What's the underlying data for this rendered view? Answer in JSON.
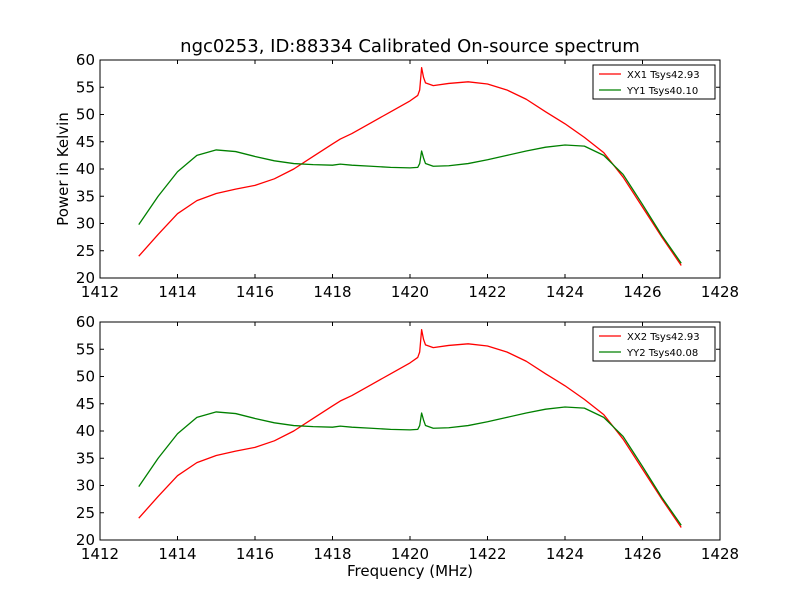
{
  "figure": {
    "title": "ngc0253, ID:88334 Calibrated On-source spectrum"
  },
  "chart_data": [
    {
      "type": "line",
      "title": "ngc0253, ID:88334 Calibrated On-source spectrum",
      "xlabel": "",
      "ylabel": "Power in Kelvin",
      "xlim": [
        1412,
        1428
      ],
      "ylim": [
        20,
        60
      ],
      "xticks": [
        1412,
        1414,
        1416,
        1418,
        1420,
        1422,
        1424,
        1426,
        1428
      ],
      "yticks": [
        20,
        25,
        30,
        35,
        40,
        45,
        50,
        55,
        60
      ],
      "grid": false,
      "legend_position": "top-right",
      "series": [
        {
          "name": "XX1 Tsys42.93",
          "color": "#ff0000",
          "points": [
            [
              1413.0,
              24.0
            ],
            [
              1413.5,
              28.0
            ],
            [
              1414.0,
              31.8
            ],
            [
              1414.5,
              34.2
            ],
            [
              1415.0,
              35.5
            ],
            [
              1415.5,
              36.3
            ],
            [
              1416.0,
              37.0
            ],
            [
              1416.5,
              38.2
            ],
            [
              1417.0,
              40.0
            ],
            [
              1417.5,
              42.3
            ],
            [
              1418.0,
              44.6
            ],
            [
              1418.2,
              45.5
            ],
            [
              1418.5,
              46.5
            ],
            [
              1419.0,
              48.5
            ],
            [
              1419.5,
              50.5
            ],
            [
              1420.0,
              52.5
            ],
            [
              1420.2,
              53.5
            ],
            [
              1420.25,
              54.5
            ],
            [
              1420.3,
              58.6
            ],
            [
              1420.35,
              56.8
            ],
            [
              1420.4,
              55.8
            ],
            [
              1420.6,
              55.3
            ],
            [
              1421.0,
              55.7
            ],
            [
              1421.5,
              56.0
            ],
            [
              1422.0,
              55.6
            ],
            [
              1422.5,
              54.5
            ],
            [
              1423.0,
              52.8
            ],
            [
              1423.5,
              50.5
            ],
            [
              1424.0,
              48.3
            ],
            [
              1424.5,
              45.8
            ],
            [
              1425.0,
              43.0
            ],
            [
              1425.5,
              38.5
            ],
            [
              1426.0,
              33.0
            ],
            [
              1426.5,
              27.5
            ],
            [
              1427.0,
              22.3
            ]
          ]
        },
        {
          "name": "YY1 Tsys40.10",
          "color": "#008000",
          "points": [
            [
              1413.0,
              29.8
            ],
            [
              1413.5,
              35.0
            ],
            [
              1414.0,
              39.5
            ],
            [
              1414.5,
              42.5
            ],
            [
              1415.0,
              43.5
            ],
            [
              1415.5,
              43.2
            ],
            [
              1416.0,
              42.3
            ],
            [
              1416.5,
              41.5
            ],
            [
              1417.0,
              41.0
            ],
            [
              1417.5,
              40.8
            ],
            [
              1418.0,
              40.7
            ],
            [
              1418.2,
              40.9
            ],
            [
              1418.5,
              40.7
            ],
            [
              1419.0,
              40.5
            ],
            [
              1419.5,
              40.3
            ],
            [
              1420.0,
              40.2
            ],
            [
              1420.2,
              40.3
            ],
            [
              1420.25,
              41.0
            ],
            [
              1420.3,
              43.3
            ],
            [
              1420.35,
              42.0
            ],
            [
              1420.4,
              41.0
            ],
            [
              1420.6,
              40.5
            ],
            [
              1421.0,
              40.6
            ],
            [
              1421.5,
              41.0
            ],
            [
              1422.0,
              41.7
            ],
            [
              1422.5,
              42.5
            ],
            [
              1423.0,
              43.3
            ],
            [
              1423.5,
              44.0
            ],
            [
              1424.0,
              44.4
            ],
            [
              1424.5,
              44.2
            ],
            [
              1425.0,
              42.5
            ],
            [
              1425.5,
              39.0
            ],
            [
              1426.0,
              33.5
            ],
            [
              1426.5,
              27.8
            ],
            [
              1427.0,
              22.7
            ]
          ]
        }
      ]
    },
    {
      "type": "line",
      "title": "",
      "xlabel": "Frequency (MHz)",
      "ylabel": "",
      "xlim": [
        1412,
        1428
      ],
      "ylim": [
        20,
        60
      ],
      "xticks": [
        1412,
        1414,
        1416,
        1418,
        1420,
        1422,
        1424,
        1426,
        1428
      ],
      "yticks": [
        20,
        25,
        30,
        35,
        40,
        45,
        50,
        55,
        60
      ],
      "grid": false,
      "legend_position": "top-right",
      "series": [
        {
          "name": "XX2 Tsys42.93",
          "color": "#ff0000",
          "points": [
            [
              1413.0,
              24.0
            ],
            [
              1413.5,
              28.0
            ],
            [
              1414.0,
              31.8
            ],
            [
              1414.5,
              34.2
            ],
            [
              1415.0,
              35.5
            ],
            [
              1415.5,
              36.3
            ],
            [
              1416.0,
              37.0
            ],
            [
              1416.5,
              38.2
            ],
            [
              1417.0,
              40.0
            ],
            [
              1417.5,
              42.3
            ],
            [
              1418.0,
              44.6
            ],
            [
              1418.2,
              45.5
            ],
            [
              1418.5,
              46.5
            ],
            [
              1419.0,
              48.5
            ],
            [
              1419.5,
              50.5
            ],
            [
              1420.0,
              52.5
            ],
            [
              1420.2,
              53.5
            ],
            [
              1420.25,
              54.5
            ],
            [
              1420.3,
              58.6
            ],
            [
              1420.35,
              56.8
            ],
            [
              1420.4,
              55.8
            ],
            [
              1420.6,
              55.3
            ],
            [
              1421.0,
              55.7
            ],
            [
              1421.5,
              56.0
            ],
            [
              1422.0,
              55.6
            ],
            [
              1422.5,
              54.5
            ],
            [
              1423.0,
              52.8
            ],
            [
              1423.5,
              50.5
            ],
            [
              1424.0,
              48.3
            ],
            [
              1424.5,
              45.8
            ],
            [
              1425.0,
              43.0
            ],
            [
              1425.5,
              38.5
            ],
            [
              1426.0,
              33.0
            ],
            [
              1426.5,
              27.5
            ],
            [
              1427.0,
              22.3
            ]
          ]
        },
        {
          "name": "YY2 Tsys40.08",
          "color": "#008000",
          "points": [
            [
              1413.0,
              29.8
            ],
            [
              1413.5,
              35.0
            ],
            [
              1414.0,
              39.5
            ],
            [
              1414.5,
              42.5
            ],
            [
              1415.0,
              43.5
            ],
            [
              1415.5,
              43.2
            ],
            [
              1416.0,
              42.3
            ],
            [
              1416.5,
              41.5
            ],
            [
              1417.0,
              41.0
            ],
            [
              1417.5,
              40.8
            ],
            [
              1418.0,
              40.7
            ],
            [
              1418.2,
              40.9
            ],
            [
              1418.5,
              40.7
            ],
            [
              1419.0,
              40.5
            ],
            [
              1419.5,
              40.3
            ],
            [
              1420.0,
              40.2
            ],
            [
              1420.2,
              40.3
            ],
            [
              1420.25,
              41.0
            ],
            [
              1420.3,
              43.3
            ],
            [
              1420.35,
              42.0
            ],
            [
              1420.4,
              41.0
            ],
            [
              1420.6,
              40.5
            ],
            [
              1421.0,
              40.6
            ],
            [
              1421.5,
              41.0
            ],
            [
              1422.0,
              41.7
            ],
            [
              1422.5,
              42.5
            ],
            [
              1423.0,
              43.3
            ],
            [
              1423.5,
              44.0
            ],
            [
              1424.0,
              44.4
            ],
            [
              1424.5,
              44.2
            ],
            [
              1425.0,
              42.5
            ],
            [
              1425.5,
              39.0
            ],
            [
              1426.0,
              33.5
            ],
            [
              1426.5,
              27.8
            ],
            [
              1427.0,
              22.7
            ]
          ]
        }
      ]
    }
  ]
}
